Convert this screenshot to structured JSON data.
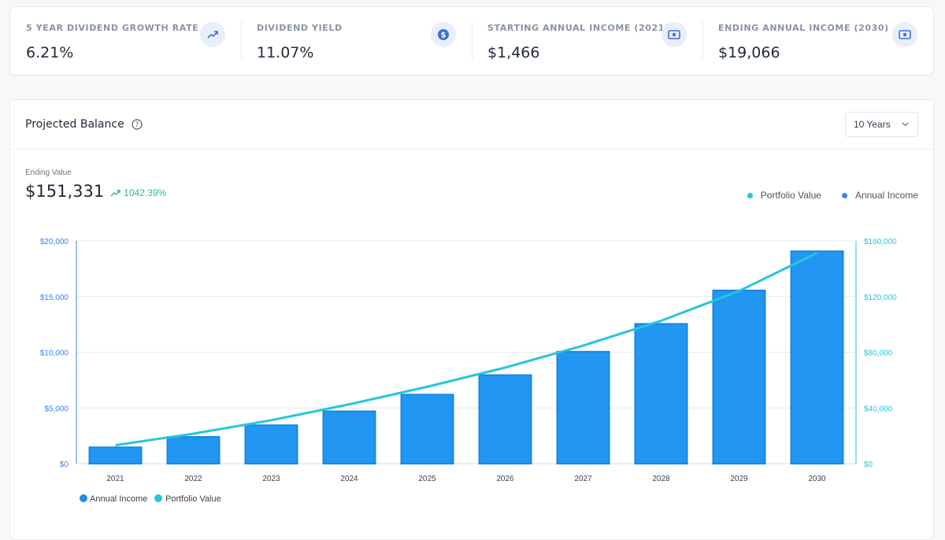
{
  "stats": [
    {
      "label": "5 YEAR DIVIDEND GROWTH RATE",
      "value": "6.21%",
      "icon": "trending-up-icon"
    },
    {
      "label": "DIVIDEND YIELD",
      "value": "11.07%",
      "icon": "dollar-circle-icon"
    },
    {
      "label": "STARTING ANNUAL INCOME (2021)",
      "value": "$1,466",
      "icon": "cash-icon"
    },
    {
      "label": "ENDING ANNUAL INCOME (2030)",
      "value": "$19,066",
      "icon": "cash-icon"
    }
  ],
  "card": {
    "title": "Projected Balance",
    "period_select": "10 Years",
    "ending_label": "Ending Value",
    "ending_value": "$151,331",
    "ending_change": "1042.39%"
  },
  "legend_top": [
    "Portfolio Value",
    "Annual Income"
  ],
  "colors": {
    "bar": "#2196f3",
    "bar_border": "#1a87dd",
    "line": "#26c6da",
    "left_axis_text": "#3b82f6",
    "right_axis_text": "#26c6da",
    "positive": "#2ebd85",
    "icon": "#3b6fd8"
  },
  "chart_data": {
    "type": "bar",
    "categories": [
      "2021",
      "2022",
      "2023",
      "2024",
      "2025",
      "2026",
      "2027",
      "2028",
      "2029",
      "2030"
    ],
    "series": [
      {
        "name": "Annual Income",
        "type": "bar",
        "axis": "left",
        "values": [
          1466,
          2400,
          3450,
          4700,
          6200,
          7950,
          10050,
          12550,
          15550,
          19066
        ]
      },
      {
        "name": "Portfolio Value",
        "type": "line",
        "axis": "right",
        "values": [
          13250,
          21500,
          31200,
          42600,
          55200,
          69000,
          84800,
          102600,
          124000,
          151331
        ]
      }
    ],
    "y_left": {
      "min": 0,
      "max": 20000,
      "ticks": [
        "$0",
        "$5,000",
        "$10,000",
        "$15,000",
        "$20,000"
      ]
    },
    "y_right": {
      "min": 0,
      "max": 160000,
      "ticks": [
        "$0",
        "$40,000",
        "$80,000",
        "$120,000",
        "$160,000"
      ]
    },
    "grid": true,
    "legend": [
      "Annual Income",
      "Portfolio Value"
    ],
    "legend_position": "bottom-left"
  }
}
